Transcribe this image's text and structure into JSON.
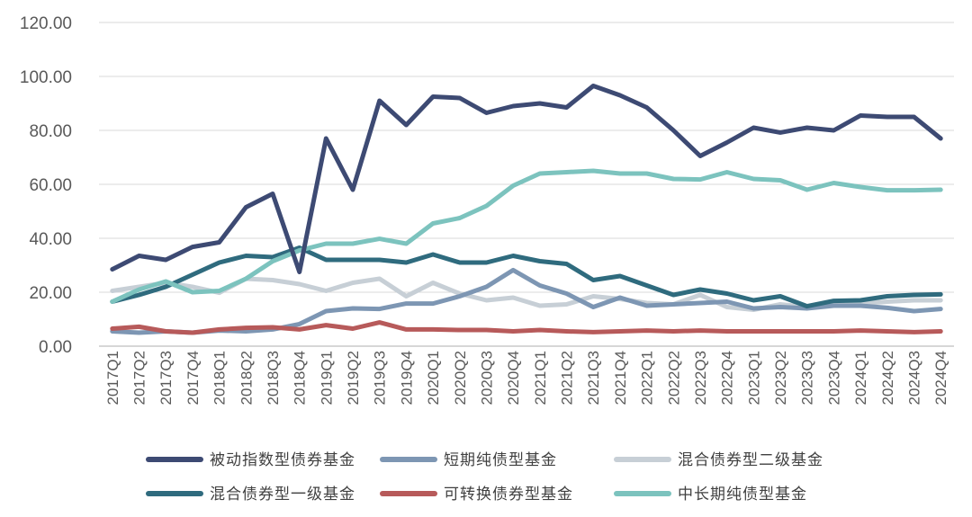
{
  "chart_data": {
    "type": "line",
    "title": "",
    "xlabel": "",
    "ylabel": "",
    "ylim": [
      0,
      120
    ],
    "yticks": [
      "0.00",
      "20.00",
      "40.00",
      "60.00",
      "80.00",
      "100.00",
      "120.00"
    ],
    "grid": "horizontal",
    "legend_position": "bottom",
    "categories": [
      "2017Q1",
      "2017Q2",
      "2017Q3",
      "2017Q4",
      "2018Q1",
      "2018Q2",
      "2018Q3",
      "2018Q4",
      "2019Q1",
      "2019Q2",
      "2019Q3",
      "2019Q4",
      "2020Q1",
      "2020Q2",
      "2020Q3",
      "2020Q4",
      "2021Q1",
      "2021Q2",
      "2021Q3",
      "2021Q4",
      "2022Q1",
      "2022Q2",
      "2022Q3",
      "2022Q4",
      "2023Q1",
      "2023Q2",
      "2023Q3",
      "2023Q4",
      "2024Q1",
      "2024Q2",
      "2024Q3",
      "2024Q4"
    ],
    "series": [
      {
        "name": "被动指数型债券基金",
        "color": "#3d4a73",
        "values": [
          28.5,
          33.5,
          32.0,
          36.8,
          38.5,
          51.5,
          56.5,
          27.5,
          77.0,
          58.0,
          91.0,
          82.0,
          92.5,
          92.0,
          86.5,
          89.0,
          90.0,
          88.5,
          96.5,
          93.0,
          88.5,
          80.0,
          70.5,
          75.5,
          81.0,
          79.2,
          81.0,
          80.0,
          85.5,
          85.0,
          85.0,
          77.0
        ]
      },
      {
        "name": "短期纯债型基金",
        "color": "#7d96b3",
        "values": [
          5.5,
          5.0,
          5.5,
          5.0,
          5.8,
          5.5,
          6.2,
          8.2,
          13.0,
          14.0,
          13.8,
          15.8,
          15.8,
          18.5,
          22.0,
          28.2,
          22.5,
          19.5,
          14.5,
          18.0,
          15.0,
          15.5,
          16.0,
          16.5,
          14.0,
          14.5,
          14.0,
          15.0,
          15.0,
          14.2,
          13.0,
          13.8
        ]
      },
      {
        "name": "混合债券型二级基金",
        "color": "#c7cfd6",
        "values": [
          20.5,
          22.0,
          23.5,
          22.0,
          19.8,
          25.0,
          24.5,
          23.0,
          20.5,
          23.5,
          25.0,
          18.5,
          23.5,
          19.5,
          17.0,
          18.0,
          15.0,
          15.5,
          18.5,
          17.5,
          16.0,
          15.5,
          19.0,
          14.5,
          13.5,
          15.5,
          14.5,
          16.0,
          15.8,
          16.5,
          17.0,
          17.0
        ]
      },
      {
        "name": "混合债券型一级基金",
        "color": "#2f6b7e",
        "values": [
          16.5,
          19.0,
          22.0,
          26.5,
          31.0,
          33.5,
          33.0,
          36.5,
          32.0,
          32.0,
          32.0,
          31.0,
          34.0,
          31.0,
          31.0,
          33.5,
          31.5,
          30.5,
          24.5,
          26.0,
          22.5,
          19.0,
          21.0,
          19.5,
          17.0,
          18.5,
          14.8,
          16.8,
          17.0,
          18.5,
          19.0,
          19.2
        ]
      },
      {
        "name": "可转换债券型基金",
        "color": "#b75a5a",
        "values": [
          6.5,
          7.2,
          5.5,
          5.0,
          6.2,
          6.8,
          7.0,
          6.2,
          7.8,
          6.5,
          8.8,
          6.2,
          6.2,
          6.0,
          6.0,
          5.5,
          6.0,
          5.5,
          5.2,
          5.5,
          5.8,
          5.5,
          5.8,
          5.5,
          5.5,
          5.5,
          5.5,
          5.5,
          5.8,
          5.5,
          5.2,
          5.5
        ]
      },
      {
        "name": "中长期纯债型基金",
        "color": "#7cc3be",
        "values": [
          16.5,
          21.0,
          24.0,
          20.0,
          20.5,
          25.0,
          31.5,
          35.5,
          38.0,
          38.0,
          39.8,
          38.0,
          45.5,
          47.5,
          52.0,
          59.5,
          64.0,
          64.5,
          65.0,
          64.0,
          64.0,
          62.0,
          61.8,
          64.5,
          62.0,
          61.5,
          58.0,
          60.5,
          59.0,
          57.8,
          57.8,
          58.0
        ]
      }
    ]
  }
}
